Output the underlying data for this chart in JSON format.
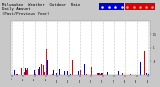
{
  "title": "Milwaukee  Weather  Outdoor  Rain\nDaily Amount\n(Past/Previous Year)",
  "title_fontsize": 2.8,
  "bg_color": "#c8c8c8",
  "plot_bg_color": "#ffffff",
  "legend_colors": [
    "#0000dd",
    "#dd0000"
  ],
  "ylim": [
    0,
    2.0
  ],
  "n_days": 365,
  "seed": 42,
  "dashed_grid_interval": 30,
  "rain_density": 0.35
}
